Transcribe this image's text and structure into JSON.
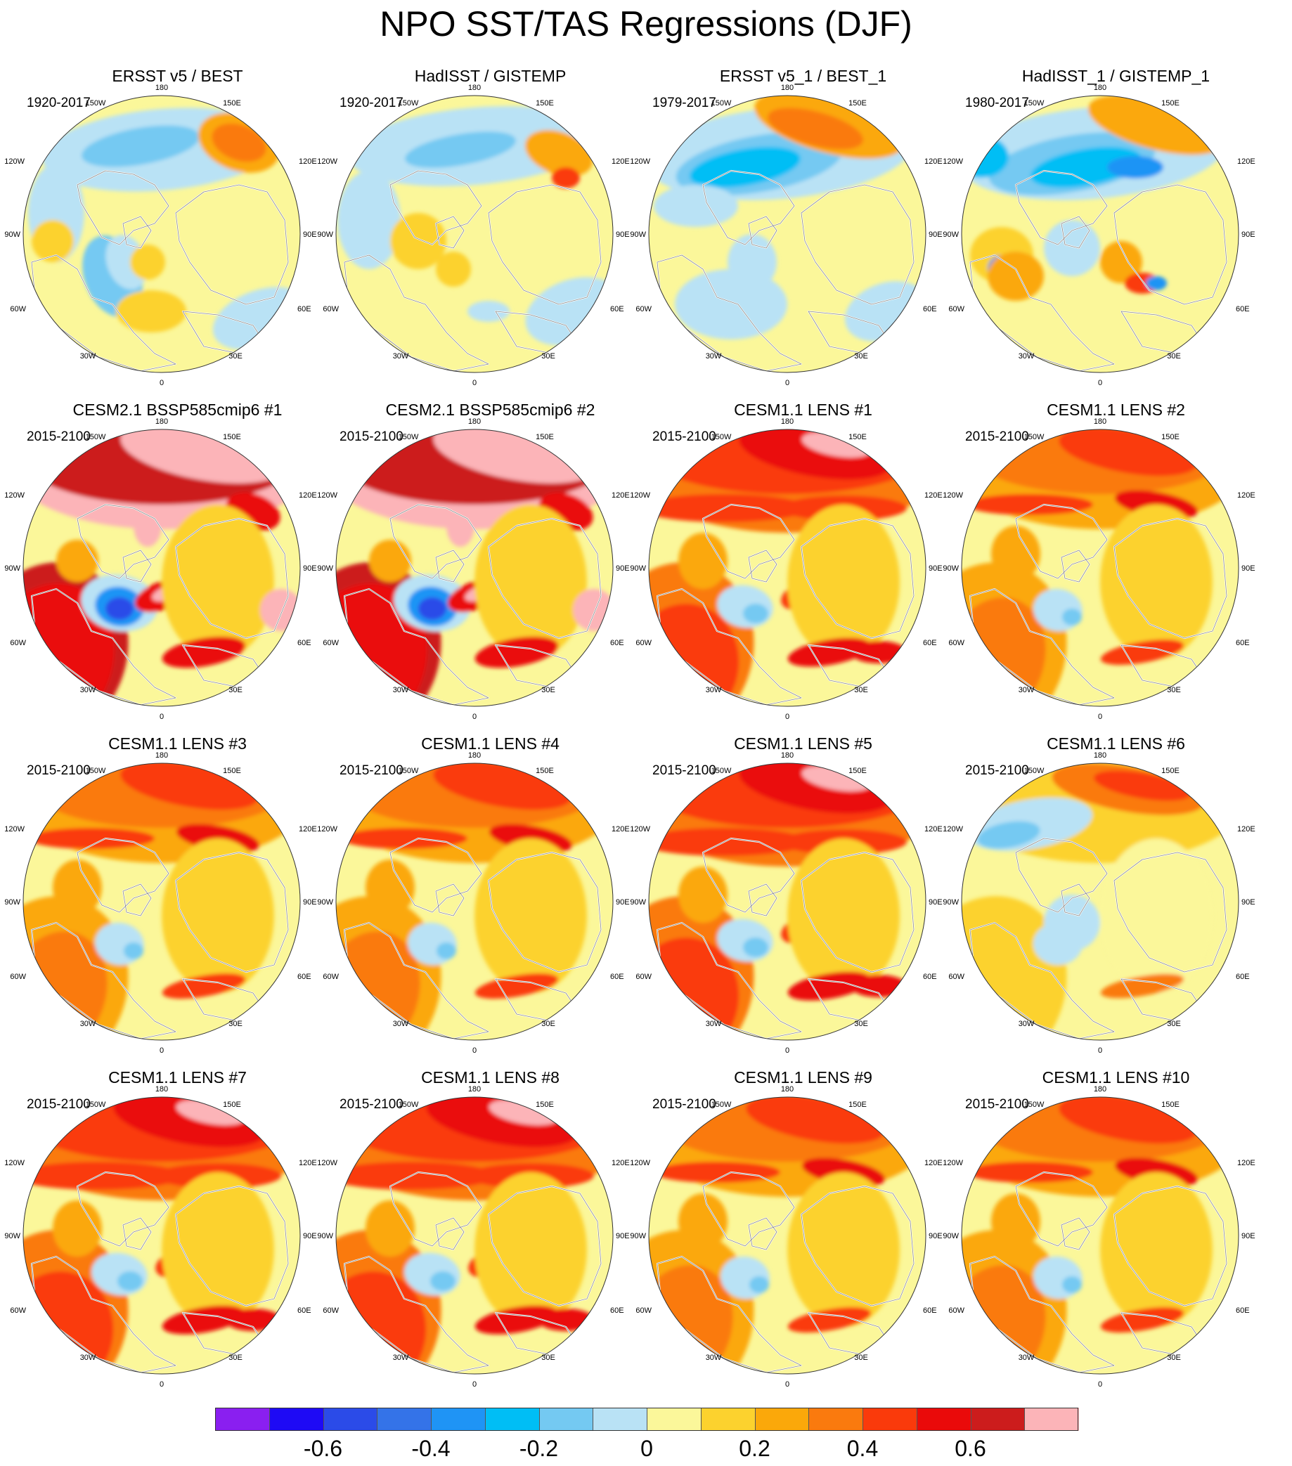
{
  "title": "NPO SST/TAS Regressions (DJF)",
  "map_labels": {
    "top": "180",
    "top_left": "150W",
    "top_right": "150E",
    "upper_left": "120W",
    "upper_right": "120E",
    "left": "90W",
    "right": "90E",
    "lower_left": "60W",
    "lower_right": "60E",
    "bottom_left": "30W",
    "bottom_right": "30E",
    "bottom": "0"
  },
  "panels": [
    {
      "title": "ERSST v5 / BEST",
      "period": "1920-2017",
      "pattern": "obs-long-a"
    },
    {
      "title": "HadISST / GISTEMP",
      "period": "1920-2017",
      "pattern": "obs-long-b"
    },
    {
      "title": "ERSST v5_1 / BEST_1",
      "period": "1979-2017",
      "pattern": "obs-short-a"
    },
    {
      "title": "HadISST_1 / GISTEMP_1",
      "period": "1980-2017",
      "pattern": "obs-short-b"
    },
    {
      "title": "CESM2.1 BSSP585cmip6 #1",
      "period": "2015-2100",
      "pattern": "cesm2-strong"
    },
    {
      "title": "CESM2.1 BSSP585cmip6 #2",
      "period": "2015-2100",
      "pattern": "cesm2-strong"
    },
    {
      "title": "CESM1.1 LENS #1",
      "period": "2015-2100",
      "pattern": "lens-strong"
    },
    {
      "title": "CESM1.1 LENS #2",
      "period": "2015-2100",
      "pattern": "lens-moderate"
    },
    {
      "title": "CESM1.1 LENS #3",
      "period": "2015-2100",
      "pattern": "lens-moderate"
    },
    {
      "title": "CESM1.1 LENS #4",
      "period": "2015-2100",
      "pattern": "lens-moderate"
    },
    {
      "title": "CESM1.1 LENS #5",
      "period": "2015-2100",
      "pattern": "lens-strong"
    },
    {
      "title": "CESM1.1 LENS #6",
      "period": "2015-2100",
      "pattern": "lens-weak"
    },
    {
      "title": "CESM1.1 LENS #7",
      "period": "2015-2100",
      "pattern": "lens-strong"
    },
    {
      "title": "CESM1.1 LENS #8",
      "period": "2015-2100",
      "pattern": "lens-strong"
    },
    {
      "title": "CESM1.1 LENS #9",
      "period": "2015-2100",
      "pattern": "lens-moderate"
    },
    {
      "title": "CESM1.1 LENS #10",
      "period": "2015-2100",
      "pattern": "lens-moderate"
    }
  ],
  "colorbar": {
    "colors": [
      "#8a1ff0",
      "#1e0af5",
      "#2b4be8",
      "#3473e8",
      "#1f94f5",
      "#00bef5",
      "#74c9f2",
      "#b9e2f5",
      "#fbf79a",
      "#fcd22e",
      "#fba80a",
      "#fa7a0e",
      "#fa3a0b",
      "#ea0a0a",
      "#cc1c1c",
      "#fcb4b8"
    ],
    "tick_labels": [
      "-0.6",
      "-0.4",
      "-0.2",
      "0",
      "0.2",
      "0.4",
      "0.6"
    ]
  }
}
